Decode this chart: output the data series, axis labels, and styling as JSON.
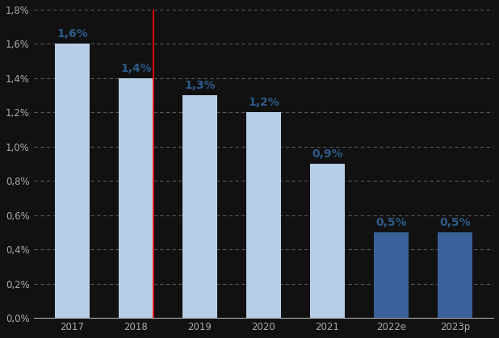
{
  "categories": [
    "2017",
    "2018",
    "2019",
    "2020",
    "2021",
    "2022e",
    "2023p"
  ],
  "values": [
    1.6,
    1.4,
    1.3,
    1.2,
    0.9,
    0.5,
    0.5
  ],
  "labels": [
    "1,6%",
    "1,4%",
    "1,3%",
    "1,2%",
    "0,9%",
    "0,5%",
    "0,5%"
  ],
  "light_color": "#b8cfe8",
  "dark_color": "#3a6199",
  "background_color": "#111111",
  "label_color": "#2e5a8a",
  "tick_color": "#aaaaaa",
  "grid_color": "#888888",
  "ylim": [
    0,
    1.8
  ],
  "yticks": [
    0.0,
    0.2,
    0.4,
    0.6,
    0.8,
    1.0,
    1.2,
    1.4,
    1.6,
    1.8
  ],
  "ytick_labels": [
    "0,0%",
    "0,2%",
    "0,4%",
    "0,6%",
    "0,8%",
    "1,0%",
    "1,2%",
    "1,4%",
    "1,6%",
    "1,8%"
  ],
  "label_fontsize": 10,
  "tick_fontsize": 8.5,
  "bar_width": 0.55,
  "red_line_idx": 1
}
